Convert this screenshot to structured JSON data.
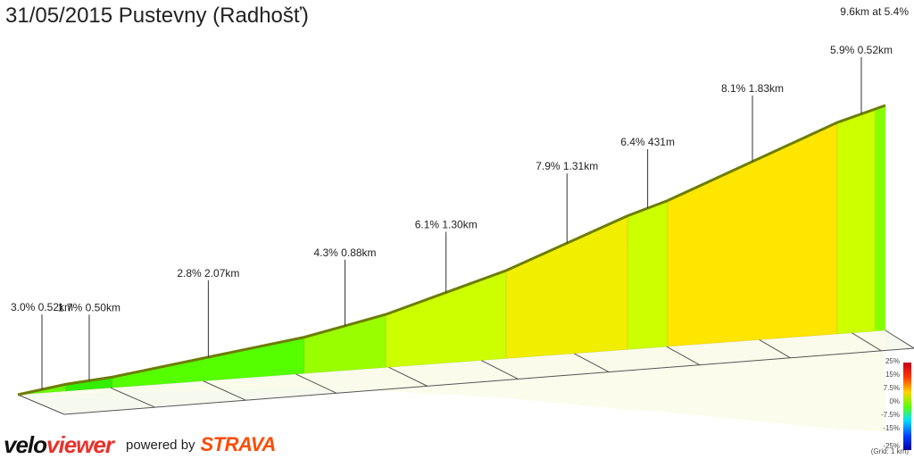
{
  "title": "31/05/2015 Pustevny (Radhošť)",
  "summary": "9.6km at 5.4%",
  "chart_data": {
    "type": "area",
    "segments": [
      {
        "label": "3.0% 0.52km",
        "grade": 3.0,
        "length_km": 0.52,
        "color": "#66ff00"
      },
      {
        "label": "1.7% 0.50km",
        "grade": 1.7,
        "length_km": 0.5,
        "color": "#33ee00"
      },
      {
        "label": "2.8% 2.07km",
        "grade": 2.8,
        "length_km": 2.07,
        "color": "#55ff00"
      },
      {
        "label": "4.3% 0.88km",
        "grade": 4.3,
        "length_km": 0.88,
        "color": "#99ff00"
      },
      {
        "label": "6.1% 1.30km",
        "grade": 6.1,
        "length_km": 1.3,
        "color": "#ccff00"
      },
      {
        "label": "7.9% 1.31km",
        "grade": 7.9,
        "length_km": 1.31,
        "color": "#f2ee00"
      },
      {
        "label": "6.4% 431m",
        "grade": 6.4,
        "length_km": 0.431,
        "color": "#ccff00"
      },
      {
        "label": "8.1% 1.83km",
        "grade": 8.1,
        "length_km": 1.83,
        "color": "#ffe600"
      },
      {
        "label": "5.9% 0.52km",
        "grade": 5.9,
        "length_km": 0.52,
        "color": "#ccff00"
      }
    ],
    "end_segment_color": "#88ff00",
    "grid": true,
    "grid_note": "(Grid: 1 km)",
    "scale_labels": [
      "25%",
      "15%",
      "7.5%",
      "0%",
      "-7.5%",
      "-15%",
      "-25%"
    ]
  },
  "branding": {
    "logo_velo": "velo",
    "logo_viewer": "viewer",
    "powered_by": "powered by",
    "strava": "STRAVA"
  }
}
